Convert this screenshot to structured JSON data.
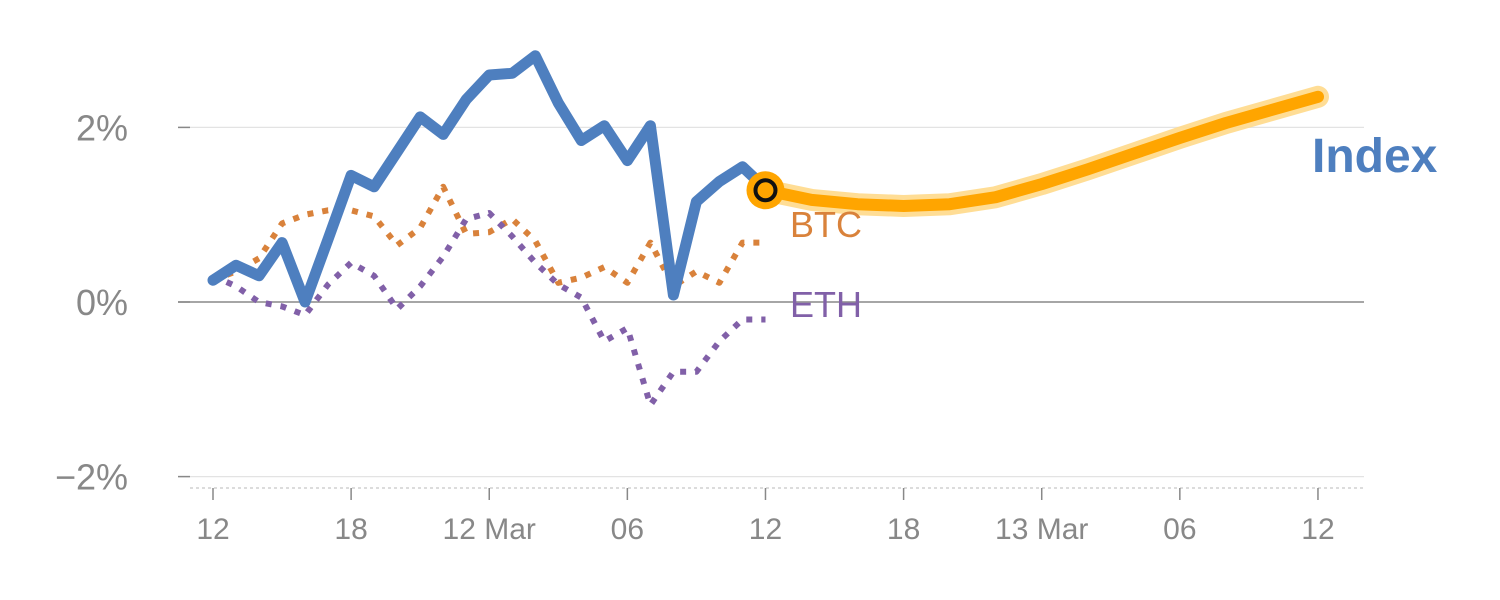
{
  "chart_data": {
    "type": "line",
    "x_unit": "hours",
    "x_range": [
      -1,
      48.5
    ],
    "ylim": [
      -2.05,
      3.0
    ],
    "grid": true,
    "yticks": [
      {
        "value": 2,
        "label": "2%"
      },
      {
        "value": 0,
        "label": "0%"
      },
      {
        "value": -2,
        "label": "−2%"
      }
    ],
    "xticks": [
      {
        "value": 0,
        "label": "12"
      },
      {
        "value": 6,
        "label": "18"
      },
      {
        "value": 12,
        "label": "12 Mar"
      },
      {
        "value": 18,
        "label": "06"
      },
      {
        "value": 24,
        "label": "12"
      },
      {
        "value": 30,
        "label": "18"
      },
      {
        "value": 36,
        "label": "13 Mar"
      },
      {
        "value": 42,
        "label": "06"
      },
      {
        "value": 48,
        "label": "12"
      }
    ],
    "series": [
      {
        "name": "Index",
        "color": "#4e7fbf",
        "style": "solid",
        "x": [
          0,
          1,
          2,
          3,
          4,
          5,
          6,
          7,
          8,
          9,
          10,
          11,
          12,
          13,
          14,
          15,
          16,
          17,
          18,
          19,
          20,
          21,
          22,
          23,
          24
        ],
        "y": [
          0.25,
          0.42,
          0.3,
          0.68,
          0.0,
          0.72,
          1.45,
          1.32,
          1.72,
          2.12,
          1.92,
          2.32,
          2.6,
          2.62,
          2.82,
          2.28,
          1.85,
          2.02,
          1.62,
          2.02,
          0.08,
          1.15,
          1.38,
          1.55,
          1.3
        ]
      },
      {
        "name": "BTC",
        "color": "#d9823b",
        "style": "dotted",
        "x": [
          0,
          1,
          2,
          3,
          4,
          5,
          6,
          7,
          8,
          9,
          10,
          11,
          12,
          13,
          14,
          15,
          16,
          17,
          18,
          19,
          20,
          21,
          22,
          23,
          24
        ],
        "y": [
          0.25,
          0.35,
          0.5,
          0.9,
          1.0,
          1.05,
          1.05,
          0.98,
          0.65,
          0.85,
          1.32,
          0.78,
          0.8,
          0.95,
          0.7,
          0.22,
          0.28,
          0.4,
          0.22,
          0.68,
          0.18,
          0.35,
          0.22,
          0.68,
          0.68
        ]
      },
      {
        "name": "ETH",
        "color": "#8160a8",
        "style": "dotted",
        "x": [
          0,
          1,
          2,
          3,
          4,
          5,
          6,
          7,
          8,
          9,
          10,
          11,
          12,
          13,
          14,
          15,
          16,
          17,
          18,
          19,
          20,
          21,
          22,
          23,
          24
        ],
        "y": [
          0.3,
          0.18,
          0.0,
          -0.05,
          -0.15,
          0.2,
          0.45,
          0.3,
          -0.08,
          0.18,
          0.52,
          0.95,
          1.02,
          0.75,
          0.45,
          0.2,
          0.05,
          -0.45,
          -0.3,
          -1.18,
          -0.8,
          -0.8,
          -0.45,
          -0.2,
          -0.2
        ]
      },
      {
        "name": "",
        "color": "#ffa500",
        "style": "forecast",
        "x": [
          24,
          26,
          28,
          30,
          32,
          34,
          36,
          38,
          40,
          42,
          44,
          46,
          48
        ],
        "y": [
          1.28,
          1.17,
          1.12,
          1.1,
          1.12,
          1.2,
          1.35,
          1.52,
          1.7,
          1.88,
          2.05,
          2.2,
          2.35
        ]
      }
    ],
    "highlight_point": {
      "x": 24,
      "y": 1.28
    },
    "end_labels": {
      "index": "Index",
      "btc": "BTC",
      "eth": "ETH"
    }
  }
}
